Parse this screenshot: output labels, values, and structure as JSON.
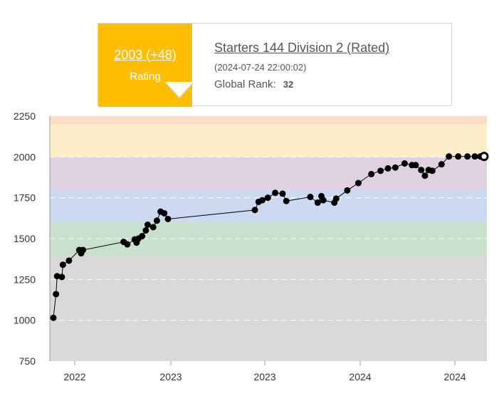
{
  "chart_data": {
    "type": "line",
    "title": "",
    "xlabel": "",
    "ylabel": "",
    "ylim": [
      750,
      2250
    ],
    "y_ticks": [
      "750",
      "1000",
      "1250",
      "1500",
      "1750",
      "2000",
      "2250"
    ],
    "x_ticks": [
      "2022",
      "2023",
      "2023",
      "2024",
      "2024"
    ],
    "bands": [
      {
        "from": 750,
        "to": 1400,
        "color": "#d9d9d9"
      },
      {
        "from": 1400,
        "to": 1600,
        "color": "#c9e1cc"
      },
      {
        "from": 1600,
        "to": 1800,
        "color": "#ccd9f1"
      },
      {
        "from": 1800,
        "to": 2000,
        "color": "#e0d1e0"
      },
      {
        "from": 2000,
        "to": 2200,
        "color": "#fdedc8"
      },
      {
        "from": 2200,
        "to": 2250,
        "color": "#fcdcc4"
      }
    ],
    "grid": "dashed horizontal",
    "series": [
      {
        "x": [
          "2021-09-26",
          "2021-10-06",
          "2021-10-10",
          "2021-10-28",
          "2021-11-01",
          "2021-11-24",
          "2022-01-02",
          "2022-01-09",
          "2022-01-16",
          "2022-06-19",
          "2022-07-03",
          "2022-07-31",
          "2022-08-07",
          "2022-08-14",
          "2022-08-28",
          "2022-09-11",
          "2022-09-18",
          "2022-10-09",
          "2022-10-23",
          "2022-11-06",
          "2022-11-20",
          "2022-12-04",
          "2023-10-29",
          "2023-11-12",
          "2023-11-26",
          "2023-12-17",
          "2024-01-14",
          "2024-02-11",
          "2024-02-25",
          "2024-05-26",
          "2024-06-23",
          "2024-07-07",
          "2024-07-14",
          "2024-08-25",
          "2024-09-01",
          "2024-10-13",
          "2024-11-24",
          "2025-01-12",
          "2025-02-16",
          "2025-03-16",
          "2025-04-13",
          "2025-05-18",
          "2025-06-15",
          "2025-06-29",
          "2025-07-20",
          "2025-08-03",
          "2025-08-17",
          "2025-08-31",
          "2025-10-05",
          "2025-11-02",
          "2025-12-07",
          "2026-01-11",
          "2026-02-08",
          "2026-03-01",
          "2026-03-15"
        ],
        "values": [
          1015,
          1160,
          1270,
          1265,
          1340,
          1365,
          1430,
          1410,
          1430,
          1480,
          1465,
          1495,
          1475,
          1500,
          1515,
          1550,
          1585,
          1570,
          1610,
          1665,
          1655,
          1620,
          1675,
          1725,
          1735,
          1750,
          1780,
          1775,
          1730,
          1755,
          1720,
          1760,
          1735,
          1720,
          1745,
          1795,
          1840,
          1895,
          1915,
          1930,
          1935,
          1960,
          1950,
          1950,
          1920,
          1885,
          1920,
          1915,
          1955,
          2003,
          2003,
          2003,
          2003,
          2003,
          2003
        ]
      }
    ],
    "highlight": {
      "x": "2026-03-15",
      "y": 2003
    }
  },
  "tooltip": {
    "rating": "2003 (+48)",
    "rating_label": "Rating",
    "contest": "Starters 144 Division 2 (Rated)",
    "date": "(2024-07-24 22:00:02)",
    "rank_label": "Global Rank:",
    "rank_value": "32"
  }
}
